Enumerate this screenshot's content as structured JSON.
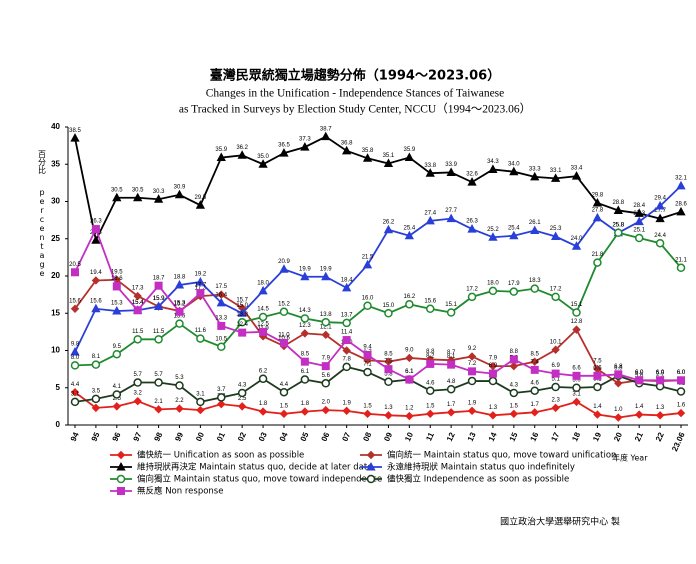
{
  "chart_data": {
    "type": "line",
    "title": "臺灣民眾統獨立場趨勢分佈（1994～2023.06）",
    "subtitle": [
      "Changes in the Unification - Independence Stances of Taiwanese",
      "as Tracked in Surveys by Election Study Center, NCCU（1994～2023.06）"
    ],
    "y_label": [
      "百分比",
      "percentage"
    ],
    "x_label": "年度 Year",
    "source": "國立政治大學選舉研究中心 製",
    "categories": [
      "94",
      "95",
      "96",
      "97",
      "98",
      "99",
      "00",
      "01",
      "02",
      "03",
      "04",
      "05",
      "06",
      "07",
      "08",
      "09",
      "10",
      "11",
      "12",
      "13",
      "14",
      "15",
      "16",
      "17",
      "18",
      "19",
      "20",
      "21",
      "22",
      "23.06"
    ],
    "ylim": [
      0,
      40
    ],
    "yticks": [
      0,
      5,
      10,
      15,
      20,
      25,
      30,
      35,
      40
    ],
    "series": [
      {
        "name": "儘快統一 Unification as soon as possible",
        "color": "#e3211c",
        "marker": "diamond",
        "values": [
          4.4,
          2.3,
          2.5,
          3.2,
          2.1,
          2.2,
          2.0,
          2.8,
          2.5,
          1.8,
          1.5,
          1.8,
          2.0,
          1.9,
          1.5,
          1.3,
          1.2,
          1.5,
          1.7,
          1.9,
          1.3,
          1.5,
          1.7,
          2.3,
          3.1,
          1.4,
          1.0,
          1.4,
          1.3,
          1.6
        ],
        "value_labels": [
          "4.4",
          "2.3",
          "2.5",
          "3.2",
          "2.1",
          "2.2",
          "2.0",
          "2.8",
          "2.5",
          "1.8",
          "1.5",
          "1.8",
          "2.0",
          "1.9",
          "1.5",
          "1.3",
          "1.2",
          "1.5",
          "1.7",
          "1.9",
          "1.3",
          "1.5",
          "1.7",
          "2.3",
          "3.1",
          "1.4",
          "1.0",
          "1.4",
          "1.3",
          "1.6"
        ]
      },
      {
        "name": "偏向統一 Maintain status quo, move toward unification",
        "color": "#b5302c",
        "marker": "diamond",
        "values": [
          15.6,
          19.4,
          19.5,
          17.3,
          15.9,
          15.3,
          17.3,
          17.5,
          15.7,
          11.9,
          10.6,
          12.3,
          12.1,
          10.0,
          8.7,
          8.5,
          9.0,
          8.8,
          8.7,
          9.2,
          7.9,
          7.9,
          8.5,
          10.1,
          12.8,
          7.5,
          5.6,
          6.0,
          5.9,
          6.0
        ],
        "value_labels": [
          "15.6",
          "19.4",
          "19.5",
          "17.3",
          "15.9",
          "15.3",
          "17.3",
          "17.5",
          "15.7",
          "11.9",
          "10.6",
          "12.3",
          "12.1",
          "10.0",
          "8.7",
          "8.5",
          "9.0",
          "8.8",
          "8.7",
          "9.2",
          "7.9",
          "7.9",
          "8.5",
          "10.1",
          "12.8",
          "7.5",
          "5.6",
          "6.0",
          "5.9",
          "6.0"
        ]
      },
      {
        "name": "維持現狀再決定 Maintain status quo, decide at later date",
        "color": "#000000",
        "marker": "triangle",
        "values": [
          38.5,
          24.8,
          30.5,
          30.5,
          30.3,
          30.9,
          29.5,
          35.9,
          36.2,
          35.0,
          36.5,
          37.3,
          38.7,
          36.8,
          35.8,
          35.1,
          35.9,
          33.8,
          33.9,
          32.6,
          34.3,
          34.0,
          33.3,
          33.1,
          33.4,
          29.8,
          28.8,
          28.4,
          27.7,
          28.6
        ],
        "value_labels": [
          "38.5",
          "24.8",
          "30.5",
          "30.5",
          "30.3",
          "30.9",
          "29.5",
          "35.9",
          "36.2",
          "35.0",
          "36.5",
          "37.3",
          "38.7",
          "36.8",
          "35.8",
          "35.1",
          "35.9",
          "33.8",
          "33.9",
          "32.6",
          "34.3",
          "34.0",
          "33.3",
          "33.1",
          "33.4",
          "29.8",
          "28.8",
          "28.4",
          "27.7",
          "28.6"
        ]
      },
      {
        "name": "永遠維持現狀 Maintain status quo indefinitely",
        "color": "#2a3fd8",
        "marker": "triangle",
        "values": [
          9.8,
          15.6,
          15.3,
          15.4,
          15.9,
          18.8,
          19.2,
          16.4,
          15.0,
          18.0,
          20.9,
          19.9,
          19.9,
          18.4,
          21.5,
          26.2,
          25.4,
          27.4,
          27.7,
          26.3,
          25.2,
          25.4,
          26.1,
          25.3,
          24.0,
          27.8,
          25.8,
          27.3,
          29.4,
          32.1
        ],
        "value_labels": [
          "9.8",
          "15.6",
          "15.3",
          "15.4",
          "15.9",
          "18.8",
          "19.2",
          "16.4",
          "15.0",
          "18.0",
          "20.9",
          "19.9",
          "19.9",
          "18.4",
          "21.5",
          "26.2",
          "25.4",
          "27.4",
          "27.7",
          "26.3",
          "25.2",
          "25.4",
          "26.1",
          "25.3",
          "24.0",
          "27.8",
          "25.8",
          "27.3",
          "29.4",
          "32.1"
        ]
      },
      {
        "name": "偏向獨立 Maintain status quo, move toward independence",
        "color": "#1f8a2e",
        "marker": "circle",
        "values": [
          8.0,
          8.1,
          9.5,
          11.5,
          11.5,
          13.6,
          11.6,
          10.5,
          13.8,
          14.5,
          15.2,
          14.3,
          13.8,
          13.7,
          16.0,
          15.0,
          16.2,
          15.6,
          15.1,
          17.2,
          18.0,
          17.9,
          18.3,
          17.2,
          15.1,
          21.8,
          25.8,
          25.1,
          24.4,
          21.1
        ],
        "value_labels": [
          "8.0",
          "8.1",
          "9.5",
          "11.5",
          "11.5",
          "13.6",
          "11.6",
          "10.5",
          "13.8",
          "14.5",
          "15.2",
          "14.3",
          "13.8",
          "13.7",
          "16.0",
          "15.0",
          "16.2",
          "15.6",
          "15.1",
          "17.2",
          "18.0",
          "17.9",
          "18.3",
          "17.2",
          "15.1",
          "21.8",
          "25.8",
          "25.1",
          "24.4",
          "21.1"
        ]
      },
      {
        "name": "儘快獨立 Independence as soon as possible",
        "color": "#1d3a1f",
        "marker": "circle",
        "values": [
          3.1,
          3.5,
          4.1,
          5.7,
          5.7,
          5.3,
          3.1,
          3.7,
          4.3,
          6.2,
          4.4,
          6.1,
          5.6,
          7.8,
          7.1,
          5.8,
          6.1,
          4.6,
          4.8,
          5.9,
          5.9,
          4.3,
          4.6,
          5.1,
          5.0,
          5.1,
          6.6,
          5.6,
          5.2,
          4.5
        ],
        "value_labels": [
          "3.1",
          "3.5",
          "4.1",
          "5.7",
          "5.7",
          "5.3",
          "3.1",
          "3.7",
          "4.3",
          "6.2",
          "4.4",
          "6.1",
          "5.6",
          "7.8",
          "7.1",
          "5.8",
          "6.1",
          "4.6",
          "4.8",
          "5.9",
          "5.9",
          "4.3",
          "4.6",
          "5.1",
          "5.0",
          "5.1",
          "6.6",
          "5.6",
          "5.2",
          "4.5"
        ]
      },
      {
        "name": "無反應 Non response",
        "color": "#c22fc2",
        "marker": "square",
        "values": [
          20.5,
          26.3,
          18.6,
          15.4,
          18.7,
          15.2,
          17.7,
          13.3,
          12.4,
          12.5,
          11.0,
          8.5,
          7.9,
          11.4,
          9.4,
          7.5,
          6.1,
          8.2,
          8.1,
          7.2,
          6.9,
          8.8,
          7.4,
          6.9,
          6.6,
          6.6,
          6.8,
          6.0,
          6.0,
          6.0
        ],
        "value_labels": [
          "20.5",
          "26.3",
          "18.6",
          "15.4",
          "18.7",
          "15.2",
          "17.7",
          "13.3",
          "12.4",
          "12.5",
          "11.0",
          "8.5",
          "7.9",
          "11.4",
          "9.4",
          "7.5",
          "6.1",
          "8.2",
          "8.1",
          "7.2",
          "6.9",
          "8.8",
          "7.4",
          "6.9",
          "6.6",
          "6.6",
          "6.8",
          "6.0",
          "6.0",
          "6.0"
        ]
      }
    ]
  }
}
